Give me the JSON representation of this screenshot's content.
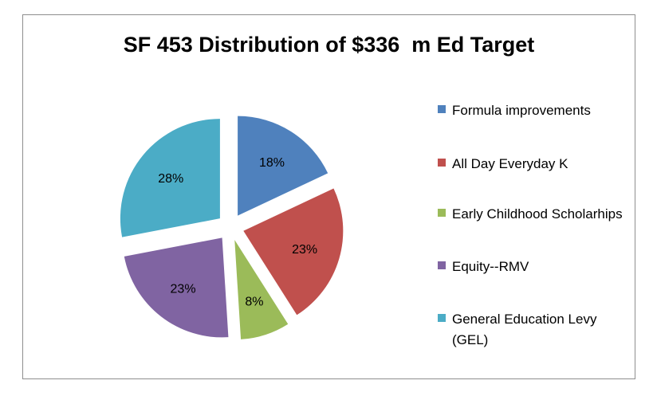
{
  "chart_data": {
    "type": "pie",
    "title": "SF 453 Distribution of $336  m Ed Target",
    "exploded": true,
    "legend_position": "right",
    "slices": [
      {
        "name": "Formula improvements",
        "value": 18,
        "label": "18%",
        "color": "#4f81bd"
      },
      {
        "name": "All Day Everyday K",
        "value": 23,
        "label": "23%",
        "color": "#c0504d"
      },
      {
        "name": "Early Childhood Scholarhips",
        "value": 8,
        "label": "8%",
        "color": "#9bbb59"
      },
      {
        "name": "Equity--RMV",
        "value": 23,
        "label": "23%",
        "color": "#8064a2"
      },
      {
        "name": "General Education Levy (GEL)",
        "value": 28,
        "label": "28%",
        "color": "#4bacc6"
      }
    ]
  }
}
